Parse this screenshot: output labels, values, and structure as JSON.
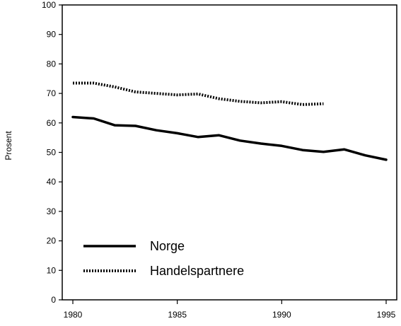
{
  "chart_data": {
    "type": "line",
    "title": "",
    "xlabel": "",
    "ylabel": "Prosent",
    "xlim": [
      1980,
      1995
    ],
    "ylim": [
      0,
      100
    ],
    "xticks": [
      1980,
      1985,
      1990,
      1995
    ],
    "yticks": [
      0,
      10,
      20,
      30,
      40,
      50,
      60,
      70,
      80,
      90,
      100
    ],
    "grid": false,
    "legend_position": "bottom-left",
    "series": [
      {
        "name": "Norge",
        "style": "solid",
        "color": "#000000",
        "x": [
          1980,
          1981,
          1982,
          1983,
          1984,
          1985,
          1986,
          1987,
          1988,
          1989,
          1990,
          1991,
          1992,
          1993,
          1994,
          1995
        ],
        "y": [
          62,
          61.5,
          59.2,
          59,
          57.5,
          56.5,
          55.2,
          55.8,
          54,
          53,
          52.2,
          50.8,
          50.2,
          51,
          49,
          47.5
        ]
      },
      {
        "name": "Handelspartnere",
        "style": "dotted",
        "color": "#000000",
        "x": [
          1980,
          1981,
          1982,
          1983,
          1984,
          1985,
          1986,
          1987,
          1988,
          1989,
          1990,
          1991,
          1992
        ],
        "y": [
          73.5,
          73.5,
          72.2,
          70.5,
          70,
          69.5,
          69.8,
          68.2,
          67.3,
          66.8,
          67.2,
          66.2,
          66.5
        ]
      }
    ]
  }
}
